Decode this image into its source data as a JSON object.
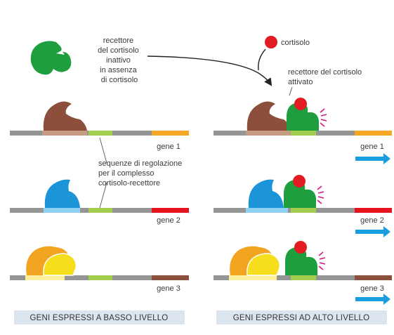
{
  "labels": {
    "inactive_receptor": [
      "recettore",
      "del cortisolo",
      "inattivo",
      "in assenza",
      "di cortisolo"
    ],
    "cortisol": "cortisolo",
    "activated_receptor": [
      "recettore del cortisolo",
      "attivato"
    ],
    "regulatory_sequences": [
      "sequenze di regolazione",
      "per il complesso",
      "cortisolo-recettore"
    ]
  },
  "genes": [
    {
      "name": "gene 1",
      "color": "#f5a623"
    },
    {
      "name": "gene 2",
      "color": "#e5131d"
    },
    {
      "name": "gene 3",
      "color": "#8b4f3c"
    }
  ],
  "captions": {
    "left": "GENI ESPRESSI A BASSO LIVELLO",
    "right": "GENI ESPRESSI AD ALTO LIVELLO"
  },
  "colors": {
    "dna": "#959595",
    "receptor": "#1e9e3e",
    "cortisol": "#e31b23",
    "regulatory_site": "#a3cd4e",
    "caption_bg": "#dde5ee",
    "expression_arrow": "#1a9ee0",
    "signal_rays": "#d4177c"
  }
}
